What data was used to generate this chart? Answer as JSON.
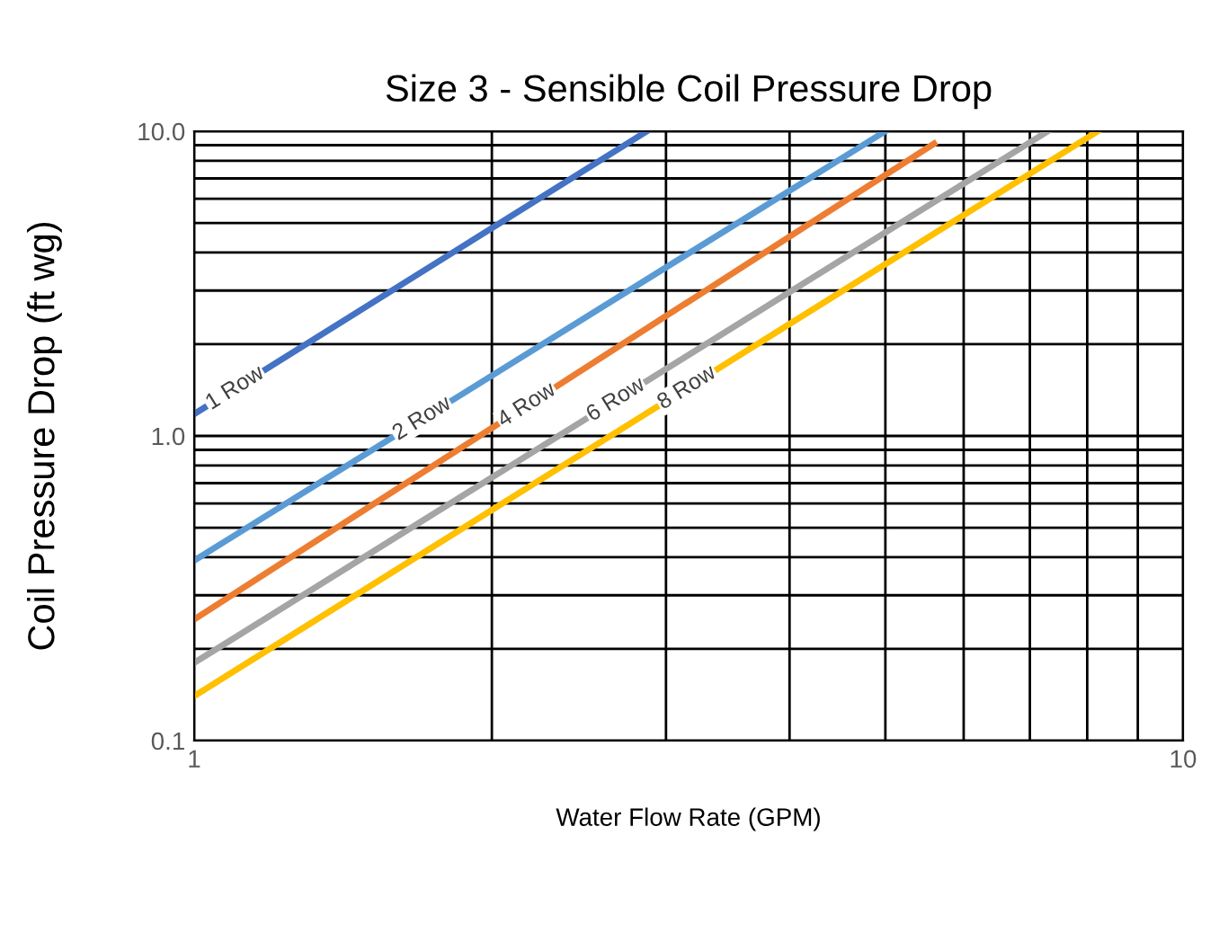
{
  "chart_data": {
    "type": "line",
    "title": "Size 3 - Sensible Coil Pressure Drop",
    "xlabel": "Water Flow Rate (GPM)",
    "ylabel": "Coil Pressure Drop (ft wg)",
    "log": "xy",
    "grid": true,
    "marker": "none",
    "line_style": "solid",
    "xlim": [
      1,
      10
    ],
    "ylim": [
      0.1,
      10
    ],
    "xticks": [
      1,
      {
        "value": 2,
        "label": null
      },
      {
        "value": 3,
        "label": null
      },
      {
        "value": 4,
        "label": null
      },
      {
        "value": 5,
        "label": null
      },
      {
        "value": 6,
        "label": null
      },
      {
        "value": 7,
        "label": null
      },
      {
        "value": 8,
        "label": null
      },
      {
        "value": 9,
        "label": null
      },
      10
    ],
    "yticks": [
      0.1,
      {
        "value": 0.2,
        "label": null
      },
      {
        "value": 0.3,
        "label": null
      },
      {
        "value": 0.4,
        "label": null
      },
      {
        "value": 0.5,
        "label": null
      },
      {
        "value": 0.6,
        "label": null
      },
      {
        "value": 0.7,
        "label": null
      },
      {
        "value": 0.8,
        "label": null
      },
      {
        "value": 0.9,
        "label": null
      },
      {
        "value": 1,
        "label": "1.0"
      },
      {
        "value": 2,
        "label": null
      },
      {
        "value": 3,
        "label": null
      },
      {
        "value": 4,
        "label": null
      },
      {
        "value": 5,
        "label": null
      },
      {
        "value": 6,
        "label": null
      },
      {
        "value": 7,
        "label": null
      },
      {
        "value": 8,
        "label": null
      },
      {
        "value": 9,
        "label": null
      },
      {
        "value": 10,
        "label": "10.0"
      }
    ],
    "series": [
      {
        "name": "1 Row",
        "color": "#4472c4",
        "x": [
          1,
          2.87
        ],
        "values": [
          1.18,
          10
        ]
      },
      {
        "name": "2 Row",
        "color": "#5b9bd5",
        "x": [
          1,
          5.0
        ],
        "values": [
          0.39,
          10
        ]
      },
      {
        "name": "4 Row",
        "color": "#ed7d31",
        "x": [
          1,
          5.6
        ],
        "values": [
          0.25,
          9.1
        ]
      },
      {
        "name": "6 Row",
        "color": "#a5a5a5",
        "x": [
          1,
          7.3
        ],
        "values": [
          0.18,
          10
        ]
      },
      {
        "name": "8 Row",
        "color": "#ffc000",
        "x": [
          1,
          8.2
        ],
        "values": [
          0.14,
          10
        ]
      }
    ]
  }
}
